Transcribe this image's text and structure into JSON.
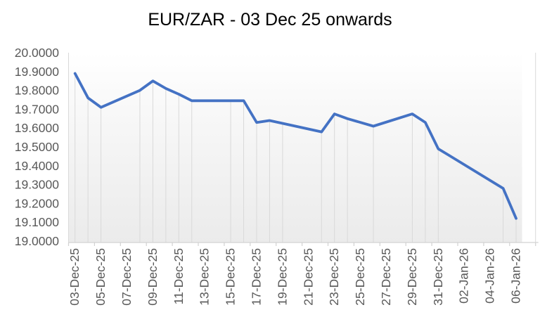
{
  "chart_data": {
    "type": "line",
    "title": "EUR/ZAR - 03 Dec 25 onwards",
    "xlabel": "",
    "ylabel": "",
    "legend": "none",
    "grid": "vertical-drop-lines-at-data-points",
    "y_axis": {
      "min": 19.0,
      "max": 20.0,
      "step": 0.1,
      "tick_labels": [
        "20.0000",
        "19.9000",
        "19.8000",
        "19.7000",
        "19.6000",
        "19.5000",
        "19.4000",
        "19.3000",
        "19.2000",
        "19.1000",
        "19.0000"
      ]
    },
    "x_axis": {
      "start_date": "03-Dec-25",
      "unit": "days",
      "tick_labels": [
        "03-Dec-25",
        "05-Dec-25",
        "07-Dec-25",
        "09-Dec-25",
        "11-Dec-25",
        "13-Dec-25",
        "15-Dec-25",
        "17-Dec-25",
        "19-Dec-25",
        "21-Dec-25",
        "23-Dec-25",
        "25-Dec-25",
        "27-Dec-25",
        "29-Dec-25",
        "31-Dec-25",
        "02-Jan-26",
        "04-Jan-26",
        "06-Jan-26"
      ],
      "tick_day_offsets": [
        0,
        2,
        4,
        6,
        8,
        10,
        12,
        14,
        16,
        18,
        20,
        22,
        24,
        26,
        28,
        30,
        32,
        34
      ]
    },
    "series": [
      {
        "name": "EUR/ZAR",
        "color": "#4472C4",
        "points": [
          {
            "date": "03-Dec-25",
            "day": 0,
            "value": 19.89
          },
          {
            "date": "04-Dec-25",
            "day": 1,
            "value": 19.76
          },
          {
            "date": "05-Dec-25",
            "day": 2,
            "value": 19.71
          },
          {
            "date": "08-Dec-25",
            "day": 5,
            "value": 19.8
          },
          {
            "date": "09-Dec-25",
            "day": 6,
            "value": 19.85
          },
          {
            "date": "10-Dec-25",
            "day": 7,
            "value": 19.81
          },
          {
            "date": "11-Dec-25",
            "day": 8,
            "value": 19.78
          },
          {
            "date": "12-Dec-25",
            "day": 9,
            "value": 19.745
          },
          {
            "date": "15-Dec-25",
            "day": 12,
            "value": 19.745
          },
          {
            "date": "16-Dec-25",
            "day": 13,
            "value": 19.745
          },
          {
            "date": "17-Dec-25",
            "day": 14,
            "value": 19.63
          },
          {
            "date": "18-Dec-25",
            "day": 15,
            "value": 19.64
          },
          {
            "date": "19-Dec-25",
            "day": 16,
            "value": 19.625
          },
          {
            "date": "22-Dec-25",
            "day": 19,
            "value": 19.58
          },
          {
            "date": "23-Dec-25",
            "day": 20,
            "value": 19.675
          },
          {
            "date": "24-Dec-25",
            "day": 21,
            "value": 19.65
          },
          {
            "date": "26-Dec-25",
            "day": 23,
            "value": 19.61
          },
          {
            "date": "29-Dec-25",
            "day": 26,
            "value": 19.675
          },
          {
            "date": "30-Dec-25",
            "day": 27,
            "value": 19.63
          },
          {
            "date": "31-Dec-25",
            "day": 28,
            "value": 19.49
          },
          {
            "date": "05-Jan-26",
            "day": 33,
            "value": 19.28
          },
          {
            "date": "06-Jan-26",
            "day": 34,
            "value": 19.12
          }
        ]
      }
    ],
    "colors": {
      "line": "#4472C4",
      "gridline": "#D9D9D9",
      "axis_line": "#D2D2D2",
      "tick_text": "#595959",
      "title_text": "#000000",
      "plot_fill_bottom": "#EBEBEB"
    }
  }
}
